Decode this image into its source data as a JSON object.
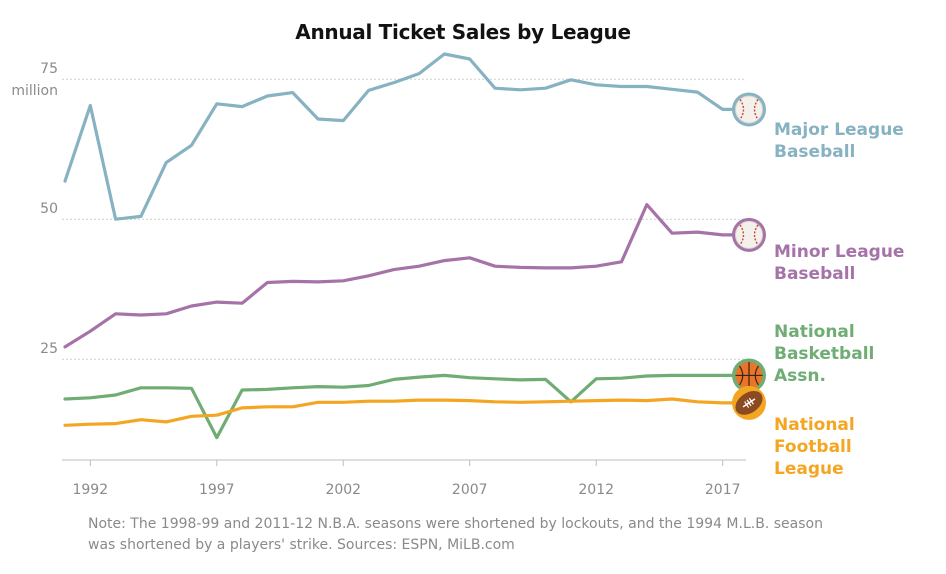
{
  "chart_data": {
    "type": "line",
    "title": "Annual Ticket Sales by League",
    "xlabel": "",
    "ylabel": "",
    "y_unit_label": "million",
    "xlim": [
      1991,
      2018
    ],
    "ylim": [
      7,
      82
    ],
    "x_ticks": [
      1992,
      1997,
      2002,
      2007,
      2012,
      2017
    ],
    "y_ticks": [
      25,
      50,
      75
    ],
    "grid": "horizontal dotted",
    "x": [
      1991,
      1992,
      1993,
      1994,
      1995,
      1996,
      1997,
      1998,
      1999,
      2000,
      2001,
      2002,
      2003,
      2004,
      2005,
      2006,
      2007,
      2008,
      2009,
      2010,
      2011,
      2012,
      2013,
      2014,
      2015,
      2016,
      2017,
      2018
    ],
    "series": [
      {
        "name": "Major League Baseball",
        "label_lines": [
          "Major League",
          "Baseball"
        ],
        "color": "#86b2c2",
        "icon": "baseball-icon",
        "values": [
          56.8,
          70.3,
          50.0,
          50.5,
          60.1,
          63.2,
          70.6,
          70.1,
          72.0,
          72.6,
          67.9,
          67.6,
          73.0,
          74.4,
          76.0,
          79.5,
          78.6,
          73.4,
          73.1,
          73.4,
          74.9,
          74.0,
          73.7,
          73.7,
          73.2,
          72.7,
          69.6,
          69.6
        ]
      },
      {
        "name": "Minor League Baseball",
        "label_lines": [
          "Minor League",
          "Baseball"
        ],
        "color": "#a673a9",
        "icon": "baseball-icon",
        "values": [
          27.2,
          30.0,
          33.1,
          32.9,
          33.1,
          34.5,
          35.2,
          35.0,
          38.7,
          38.9,
          38.8,
          39.0,
          39.9,
          41.0,
          41.6,
          42.6,
          43.1,
          41.6,
          41.4,
          41.3,
          41.3,
          41.6,
          42.4,
          52.6,
          47.5,
          47.7,
          47.2,
          47.2
        ]
      },
      {
        "name": "National Basketball Assn.",
        "label_lines": [
          "National",
          "Basketball",
          "Assn."
        ],
        "color": "#6fad74",
        "icon": "basketball-icon",
        "values": [
          17.9,
          18.1,
          18.6,
          19.9,
          19.9,
          19.8,
          11.0,
          19.5,
          19.6,
          19.9,
          20.1,
          20.0,
          20.3,
          21.4,
          21.8,
          22.1,
          21.7,
          21.5,
          21.3,
          21.4,
          17.4,
          21.5,
          21.6,
          22.0,
          22.1,
          22.1,
          22.1,
          22.1
        ]
      },
      {
        "name": "National Football League",
        "label_lines": [
          "National",
          "Football",
          "League"
        ],
        "color": "#f4a623",
        "icon": "football-icon",
        "values": [
          13.2,
          13.4,
          13.5,
          14.2,
          13.8,
          14.8,
          15.0,
          16.3,
          16.5,
          16.5,
          17.3,
          17.3,
          17.5,
          17.5,
          17.7,
          17.7,
          17.6,
          17.4,
          17.3,
          17.4,
          17.5,
          17.6,
          17.7,
          17.6,
          17.9,
          17.4,
          17.2,
          17.2
        ]
      }
    ]
  },
  "note": "Note: The 1998-99 and 2011-12 N.B.A. seasons were shortened by lockouts, and the 1994 M.L.B. season was shortened by a players' strike. Sources: ESPN, MiLB.com"
}
